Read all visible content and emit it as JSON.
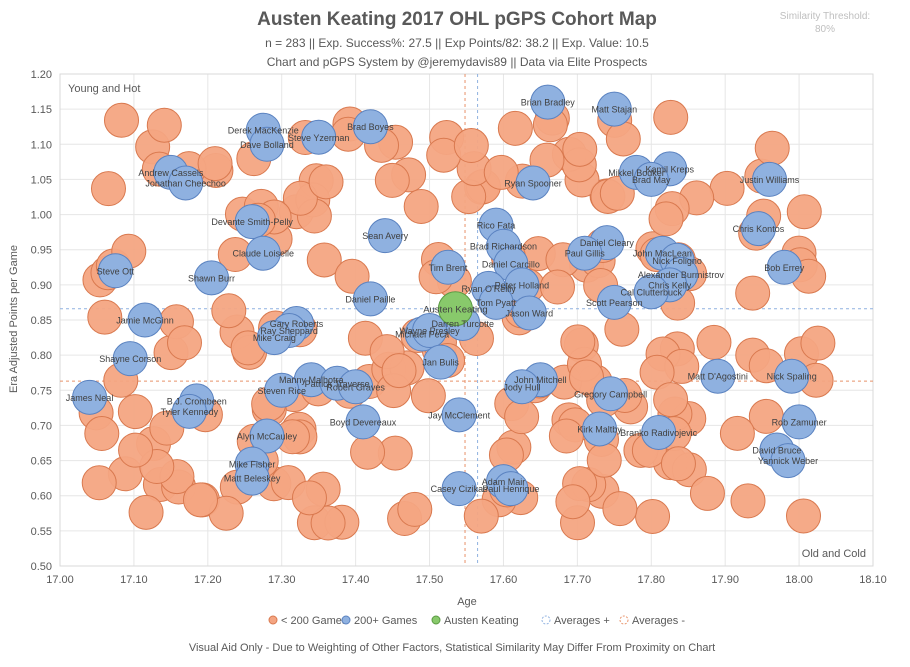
{
  "chart_data": {
    "type": "scatter",
    "title": "Austen Keating 2017 OHL pGPS Cohort Map",
    "subtitle_line1": "n = 283 || Exp. Success%: 27.5 || Exp Points/82: 38.2 || Exp. Value: 10.5",
    "subtitle_line2": "Chart and pGPS System by @jeremydavis89 || Data via Elite Prospects",
    "similarity_label": "Similarity Threshold:",
    "similarity_value": "80%",
    "xlabel": "Age",
    "ylabel": "Era Adjusted Points per Game",
    "xlim": [
      17.0,
      18.1
    ],
    "ylim": [
      0.5,
      1.2
    ],
    "xticks": [
      "17.00",
      "17.10",
      "17.20",
      "17.30",
      "17.40",
      "17.50",
      "17.60",
      "17.70",
      "17.80",
      "17.90",
      "18.00",
      "18.10"
    ],
    "yticks": [
      "0.50",
      "0.55",
      "0.60",
      "0.65",
      "0.70",
      "0.75",
      "0.80",
      "0.85",
      "0.90",
      "0.95",
      "1.00",
      "1.05",
      "1.10",
      "1.15",
      "1.20"
    ],
    "corner_top_left": "Young and Hot",
    "corner_bottom_right": "Old and Cold",
    "footer": "Visual Aid Only - Due to Weighting of Other Factors, Statistical Similarity May Differ From Proximity on Chart",
    "legend": [
      "< 200 Games",
      "200+ Games",
      "Austen Keating",
      "Averages +",
      "Averages -"
    ],
    "colors": {
      "under200": "#f4a582",
      "under200_stroke": "#d9794f",
      "over200": "#8fb1e0",
      "over200_stroke": "#5a82c0",
      "subject": "#88c96b",
      "subject_stroke": "#5a9a42",
      "avg_plus": "#8fb1e0",
      "avg_minus": "#e8926a"
    },
    "averages": {
      "plus_x": 17.565,
      "plus_y": 0.866,
      "minus_x": 17.548,
      "minus_y": 0.763
    },
    "subject": {
      "name": "Austen Keating",
      "x": 17.535,
      "y": 0.866
    },
    "players_200plus": [
      {
        "name": "Brian Bradley",
        "x": 17.66,
        "y": 1.16
      },
      {
        "name": "Matt Stajan",
        "x": 17.75,
        "y": 1.15
      },
      {
        "name": "Brad Boyes",
        "x": 17.42,
        "y": 1.125
      },
      {
        "name": "Derek MacKenzie",
        "x": 17.275,
        "y": 1.12
      },
      {
        "name": "Steve Yzerman",
        "x": 17.35,
        "y": 1.11
      },
      {
        "name": "Dave Bolland",
        "x": 17.28,
        "y": 1.1
      },
      {
        "name": "Mikkel Bodker",
        "x": 17.78,
        "y": 1.06
      },
      {
        "name": "Kamil Kreps",
        "x": 17.825,
        "y": 1.065
      },
      {
        "name": "Andrew Cassels",
        "x": 17.15,
        "y": 1.06
      },
      {
        "name": "Brad May",
        "x": 17.8,
        "y": 1.05
      },
      {
        "name": "Justin Williams",
        "x": 17.96,
        "y": 1.05
      },
      {
        "name": "Jonathan Cheechoo",
        "x": 17.17,
        "y": 1.045
      },
      {
        "name": "Ryan Spooner",
        "x": 17.64,
        "y": 1.045
      },
      {
        "name": "Devante Smith-Pelly",
        "x": 17.26,
        "y": 0.99
      },
      {
        "name": "Rico Fata",
        "x": 17.59,
        "y": 0.985
      },
      {
        "name": "Chris Kontos",
        "x": 17.945,
        "y": 0.98
      },
      {
        "name": "Sean Avery",
        "x": 17.44,
        "y": 0.97
      },
      {
        "name": "Daniel Cleary",
        "x": 17.74,
        "y": 0.96
      },
      {
        "name": "Brad Richardson",
        "x": 17.6,
        "y": 0.955
      },
      {
        "name": "Claude Loiselle",
        "x": 17.275,
        "y": 0.945
      },
      {
        "name": "Paul Gillis",
        "x": 17.71,
        "y": 0.945
      },
      {
        "name": "John MacLean",
        "x": 17.815,
        "y": 0.945
      },
      {
        "name": "Nick Foligno",
        "x": 17.835,
        "y": 0.935
      },
      {
        "name": "Daniel Carcillo",
        "x": 17.61,
        "y": 0.93
      },
      {
        "name": "Tim Brent",
        "x": 17.525,
        "y": 0.925
      },
      {
        "name": "Steve Ott",
        "x": 17.075,
        "y": 0.92
      },
      {
        "name": "Bob Errey",
        "x": 17.98,
        "y": 0.925
      },
      {
        "name": "Alexander Burmistrov",
        "x": 17.84,
        "y": 0.915
      },
      {
        "name": "Shawn Burr",
        "x": 17.205,
        "y": 0.91
      },
      {
        "name": "Chris Kelly",
        "x": 17.825,
        "y": 0.9
      },
      {
        "name": "Peter Holland",
        "x": 17.625,
        "y": 0.9
      },
      {
        "name": "Ryan O'Reilly",
        "x": 17.58,
        "y": 0.895
      },
      {
        "name": "Cal Clutterbuck",
        "x": 17.8,
        "y": 0.89
      },
      {
        "name": "Daniel Paille",
        "x": 17.42,
        "y": 0.88
      },
      {
        "name": "Tom Pyatt",
        "x": 17.59,
        "y": 0.875
      },
      {
        "name": "Scott Pearson",
        "x": 17.75,
        "y": 0.875
      },
      {
        "name": "Jason Ward",
        "x": 17.635,
        "y": 0.86
      },
      {
        "name": "Jamie McGinn",
        "x": 17.115,
        "y": 0.85
      },
      {
        "name": "Gary Roberts",
        "x": 17.32,
        "y": 0.845
      },
      {
        "name": "Ray Sheppard",
        "x": 17.31,
        "y": 0.835
      },
      {
        "name": "Darren Turcotte",
        "x": 17.545,
        "y": 0.845
      },
      {
        "name": "Mike Craig",
        "x": 17.29,
        "y": 0.825
      },
      {
        "name": "Michael Peca",
        "x": 17.49,
        "y": 0.83
      },
      {
        "name": "Wayne Presley",
        "x": 17.5,
        "y": 0.835
      },
      {
        "name": "Shayne Corson",
        "x": 17.095,
        "y": 0.795
      },
      {
        "name": "Jan Bulis",
        "x": 17.515,
        "y": 0.79
      },
      {
        "name": "Matt D'Agostini",
        "x": 17.89,
        "y": 0.77
      },
      {
        "name": "Nick Spaling",
        "x": 17.99,
        "y": 0.77
      },
      {
        "name": "Manny Malhotra",
        "x": 17.34,
        "y": 0.765
      },
      {
        "name": "Patrick Traverse",
        "x": 17.375,
        "y": 0.76
      },
      {
        "name": "Robert Graves",
        "x": 17.4,
        "y": 0.755
      },
      {
        "name": "John Mitchell",
        "x": 17.65,
        "y": 0.765
      },
      {
        "name": "Jody Hull",
        "x": 17.625,
        "y": 0.755
      },
      {
        "name": "Steven Rice",
        "x": 17.3,
        "y": 0.75
      },
      {
        "name": "Gregory Campbell",
        "x": 17.745,
        "y": 0.745
      },
      {
        "name": "James Neal",
        "x": 17.04,
        "y": 0.74
      },
      {
        "name": "B.J. Crombeen",
        "x": 17.185,
        "y": 0.735
      },
      {
        "name": "Tyler Kennedy",
        "x": 17.175,
        "y": 0.72
      },
      {
        "name": "Jay McClement",
        "x": 17.54,
        "y": 0.715
      },
      {
        "name": "Boyd Devereaux",
        "x": 17.41,
        "y": 0.705
      },
      {
        "name": "Rob Zamuner",
        "x": 18.0,
        "y": 0.705
      },
      {
        "name": "Kirk Maltby",
        "x": 17.73,
        "y": 0.695
      },
      {
        "name": "Branko Radivojevic",
        "x": 17.81,
        "y": 0.69
      },
      {
        "name": "Alyn McCauley",
        "x": 17.28,
        "y": 0.685
      },
      {
        "name": "David Bruce",
        "x": 17.97,
        "y": 0.665
      },
      {
        "name": "Yannick Weber",
        "x": 17.985,
        "y": 0.65
      },
      {
        "name": "Mike Fisher",
        "x": 17.26,
        "y": 0.645
      },
      {
        "name": "Matt Beleskey",
        "x": 17.26,
        "y": 0.625
      },
      {
        "name": "Adam Mair",
        "x": 17.6,
        "y": 0.62
      },
      {
        "name": "Casey Cizikas",
        "x": 17.54,
        "y": 0.61
      },
      {
        "name": "Paul Henrique",
        "x": 17.61,
        "y": 0.61
      }
    ]
  }
}
